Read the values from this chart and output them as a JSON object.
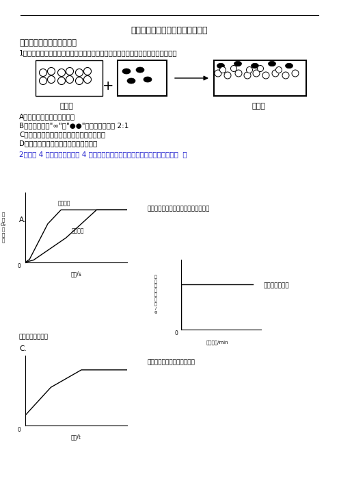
{
  "title": "初三化学上册期末模拟试题及答案",
  "section1": "一、九年级化学上册选择题",
  "q1_text": "1．如图是某反应前后的微观示意图，关于该示意图表示的化学变化的说法正确的是",
  "optA": "A．该反应常温下一定能发生",
  "optB": "B．参加反应的\"∞\"和\"●●\"分子的个数比是 2:1",
  "optC": "C．反应前后原子的种类和数目没有发生改变",
  "optD": "D．反应前后元素的化合价没有发生改变",
  "q2_text": "2．下列 4 个坐标图分别表示 4 个实验过程中某些质量的变化，其中正确的是（  ）",
  "graphA_label": "等体积、等质量分数的双氧水溶液分解",
  "graphA_xlabel": "时间/s",
  "graphA_cat1": "有偐化剂",
  "graphA_cat2": "无偐化剂",
  "graphB_label": "木炭在盛有氧气",
  "graphB_xlabel": "反应时间/min",
  "graphC_label": "加热一定质量的高锰酸馈固体",
  "graphC_xlabel": "时间/t",
  "suffix_B": "的密闭容器内燃烧",
  "label_react_before": "反应前",
  "label_react_after": "反应后"
}
